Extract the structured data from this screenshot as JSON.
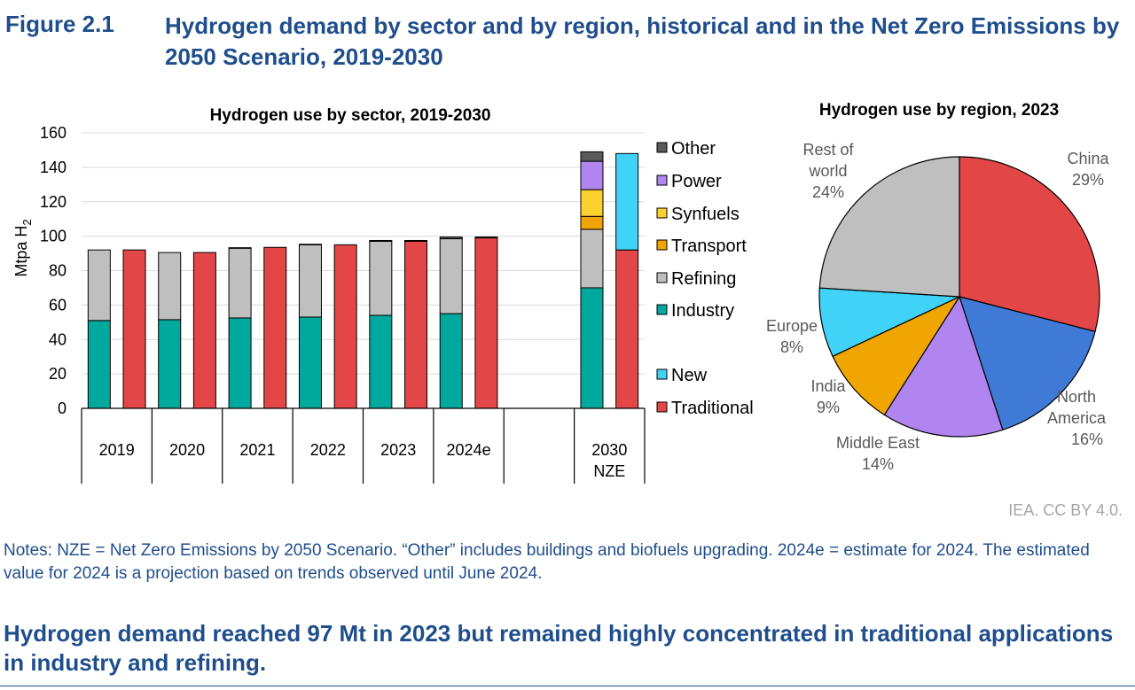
{
  "figure": {
    "number": "Figure 2.1",
    "title": "Hydrogen demand by sector and by region, historical and in the Net Zero Emissions by 2050 Scenario, 2019-2030"
  },
  "credit": "IEA. CC BY 4.0.",
  "notes": "Notes: NZE = Net Zero Emissions by 2050 Scenario. “Other” includes buildings and biofuels upgrading. 2024e = estimate for 2024. The estimated value for 2024 is a projection based on trends observed until June 2024.",
  "headline": "Hydrogen demand reached 97 Mt in 2023 but remained highly concentrated in traditional applications in industry and refining.",
  "chart_data": [
    {
      "type": "bar",
      "title": "Hydrogen use by sector, 2019-2030",
      "ylabel": "Mtpa H",
      "ylabel_sub": "2",
      "ylim": [
        0,
        160
      ],
      "yticks": [
        0,
        20,
        40,
        60,
        80,
        100,
        120,
        140,
        160
      ],
      "grid": true,
      "legend_placement": "right",
      "categories": [
        "2019",
        "2020",
        "2021",
        "2022",
        "2023",
        "2024e",
        "2030 NZE"
      ],
      "stack_colors": {
        "Other": "#595959",
        "Power": "#b085f0",
        "Synfuels": "#fad12e",
        "Transport": "#f0a500",
        "Refining": "#bfbfbf",
        "Industry": "#00a99d",
        "New": "#40d2f7",
        "Traditional": "#e34646"
      },
      "legend_sector": [
        "Other",
        "Power",
        "Synfuels",
        "Transport",
        "Refining",
        "Industry"
      ],
      "legend_type": [
        "New",
        "Traditional"
      ],
      "sector_bars": [
        {
          "category": "2019",
          "Industry": 51,
          "Refining": 41,
          "Transport": 0,
          "Synfuels": 0,
          "Power": 0,
          "Other": 0
        },
        {
          "category": "2020",
          "Industry": 51.5,
          "Refining": 39,
          "Transport": 0,
          "Synfuels": 0,
          "Power": 0,
          "Other": 0
        },
        {
          "category": "2021",
          "Industry": 52.5,
          "Refining": 40.5,
          "Transport": 0,
          "Synfuels": 0,
          "Power": 0,
          "Other": 0.3
        },
        {
          "category": "2022",
          "Industry": 53,
          "Refining": 42,
          "Transport": 0,
          "Synfuels": 0,
          "Power": 0,
          "Other": 0.3
        },
        {
          "category": "2023",
          "Industry": 54,
          "Refining": 43,
          "Transport": 0,
          "Synfuels": 0,
          "Power": 0,
          "Other": 0.5
        },
        {
          "category": "2024e",
          "Industry": 55,
          "Refining": 43.5,
          "Transport": 0,
          "Synfuels": 0,
          "Power": 0,
          "Other": 1
        },
        {
          "category": "2030 NZE",
          "Industry": 70,
          "Refining": 34,
          "Transport": 7.5,
          "Synfuels": 15.5,
          "Power": 16.5,
          "Other": 5.5
        }
      ],
      "type_bars": [
        {
          "category": "2019",
          "Traditional": 92,
          "New": 0
        },
        {
          "category": "2020",
          "Traditional": 90.5,
          "New": 0
        },
        {
          "category": "2021",
          "Traditional": 93.5,
          "New": 0
        },
        {
          "category": "2022",
          "Traditional": 95,
          "New": 0
        },
        {
          "category": "2023",
          "Traditional": 97,
          "New": 0.5
        },
        {
          "category": "2024e",
          "Traditional": 99,
          "New": 0.5
        },
        {
          "category": "2030 NZE",
          "Traditional": 92,
          "New": 56
        }
      ]
    },
    {
      "type": "pie",
      "title": "Hydrogen use by region, 2023",
      "start_angle_deg": 0,
      "direction": "clockwise",
      "slices": [
        {
          "label": "China",
          "value": 29,
          "pct": "29%",
          "color": "#e34646"
        },
        {
          "label": "North America",
          "value": 16,
          "pct": "16%",
          "color": "#3f7ad6"
        },
        {
          "label": "Middle East",
          "value": 14,
          "pct": "14%",
          "color": "#b085f0"
        },
        {
          "label": "India",
          "value": 9,
          "pct": "9%",
          "color": "#f0a500"
        },
        {
          "label": "Europe",
          "value": 8,
          "pct": "8%",
          "color": "#40d2f7"
        },
        {
          "label": "Rest of world",
          "value": 24,
          "pct": "24%",
          "color": "#bfbfbf"
        }
      ]
    }
  ]
}
